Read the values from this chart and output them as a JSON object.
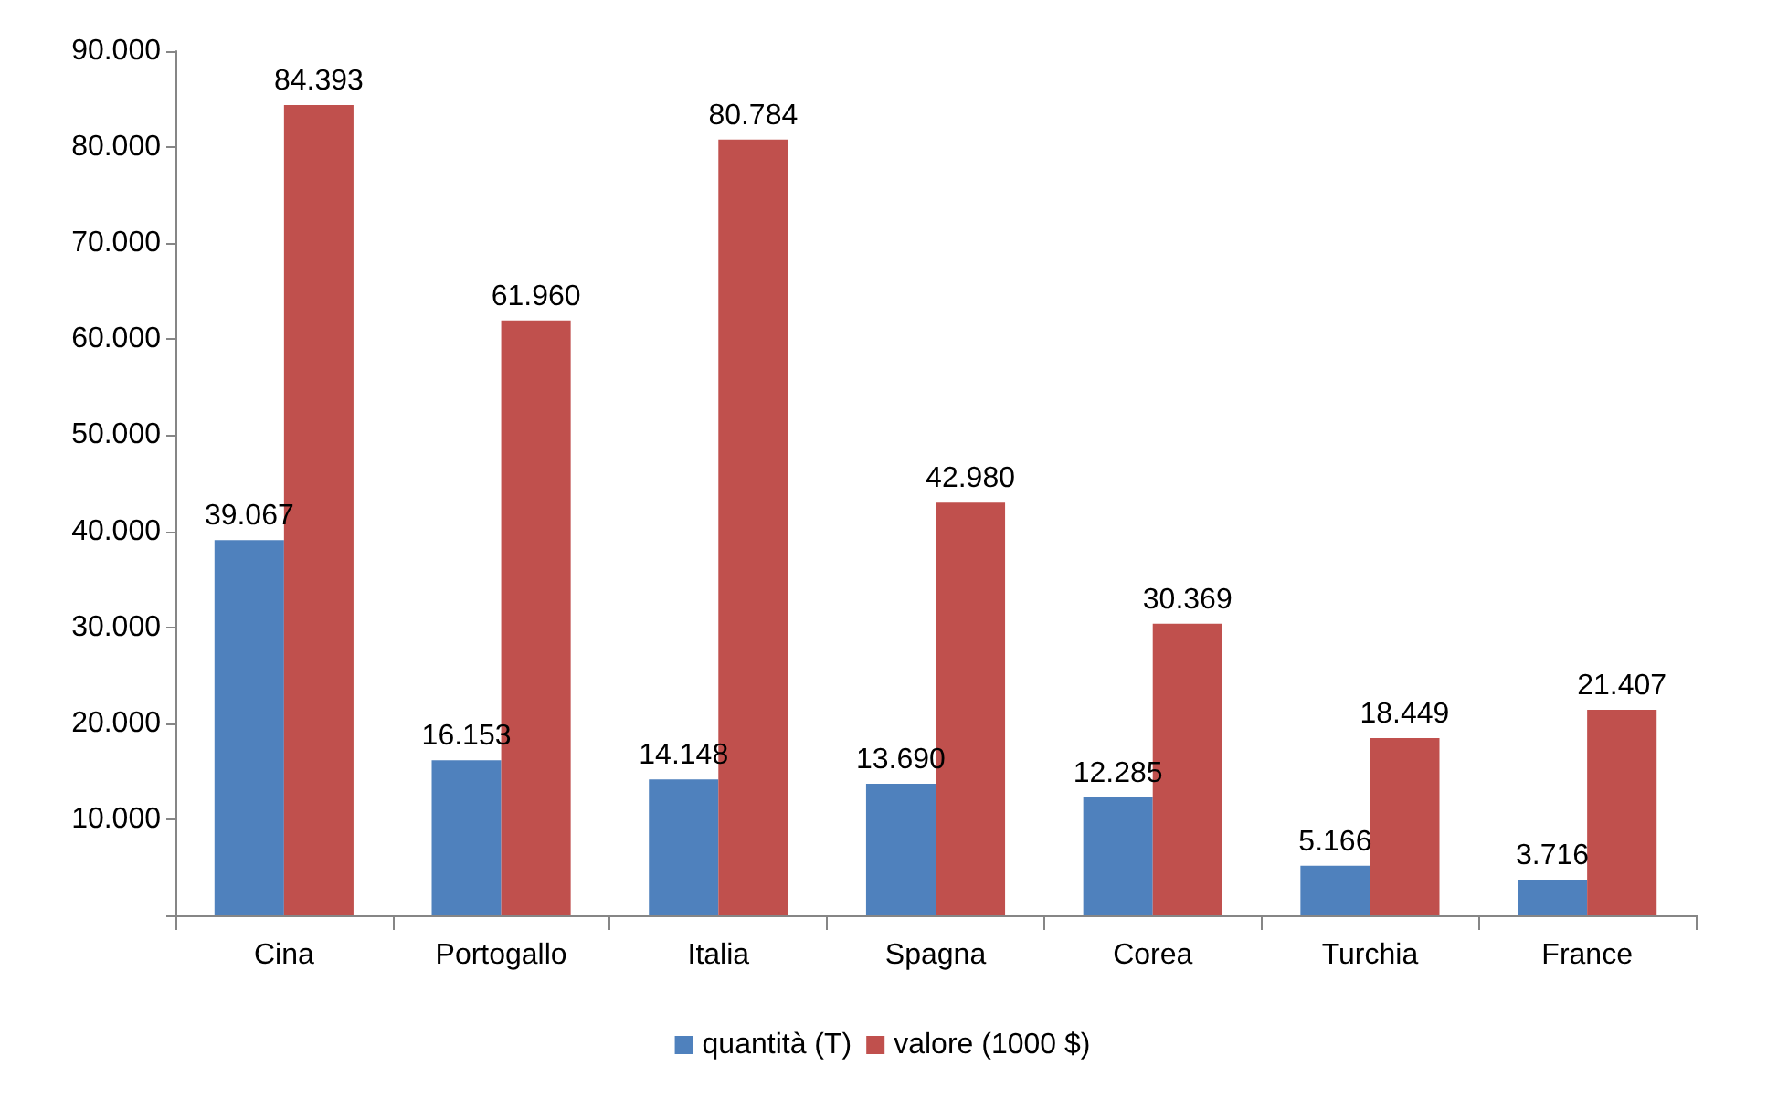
{
  "chart_data": {
    "type": "bar",
    "categories": [
      "Cina",
      "Portogallo",
      "Italia",
      "Spagna",
      "Corea",
      "Turchia",
      "France"
    ],
    "series": [
      {
        "name": "quantità (T)",
        "color": "#4f81bd",
        "values": [
          39067,
          16153,
          14148,
          13690,
          12285,
          5166,
          3716
        ],
        "value_labels": [
          "39.067",
          "16.153",
          "14.148",
          "13.690",
          "12.285",
          "5.166",
          "3.716"
        ]
      },
      {
        "name": "valore (1000 $)",
        "color": "#c0504d",
        "values": [
          84393,
          61960,
          80784,
          42980,
          30369,
          18449,
          21407
        ],
        "value_labels": [
          "84.393",
          "61.960",
          "80.784",
          "42.980",
          "30.369",
          "18.449",
          "21.407"
        ]
      }
    ],
    "ylim": [
      0,
      90000
    ],
    "yticks": [
      {
        "value": 0,
        "label": null
      },
      {
        "value": 10000,
        "label": "10.000"
      },
      {
        "value": 20000,
        "label": "20.000"
      },
      {
        "value": 30000,
        "label": "30.000"
      },
      {
        "value": 40000,
        "label": "40.000"
      },
      {
        "value": 50000,
        "label": "50.000"
      },
      {
        "value": 60000,
        "label": "60.000"
      },
      {
        "value": 70000,
        "label": "70.000"
      },
      {
        "value": 80000,
        "label": "80.000"
      },
      {
        "value": 90000,
        "label": "90.000"
      }
    ],
    "grid": false,
    "legend": "bottom"
  }
}
